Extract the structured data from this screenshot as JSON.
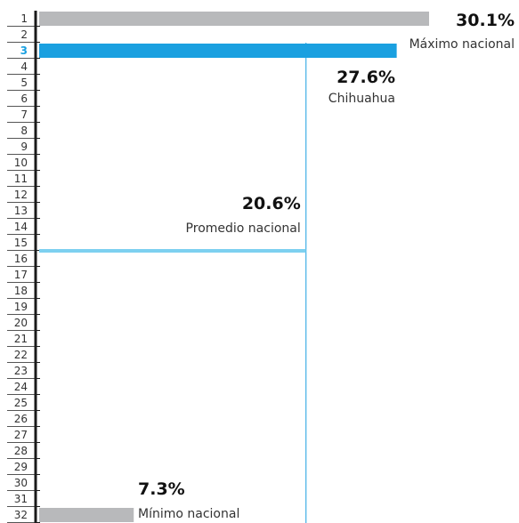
{
  "chart_data": {
    "type": "bar",
    "orientation": "horizontal",
    "categories": [
      "1",
      "2",
      "3",
      "4",
      "5",
      "6",
      "7",
      "8",
      "9",
      "10",
      "11",
      "12",
      "13",
      "14",
      "15",
      "16",
      "17",
      "18",
      "19",
      "20",
      "21",
      "22",
      "23",
      "24",
      "25",
      "26",
      "27",
      "28",
      "29",
      "30",
      "31",
      "32"
    ],
    "xlim": [
      0,
      30.1
    ],
    "bars": [
      {
        "rank": "1",
        "value": 30.1,
        "value_label": "30.1%",
        "description": "Máximo nacional",
        "color": "#b8b9bb"
      },
      {
        "rank": "3",
        "value": 27.6,
        "value_label": "27.6%",
        "description": "Chihuahua",
        "color": "#1aa0e0"
      },
      {
        "rank": "32",
        "value": 7.3,
        "value_label": "7.3%",
        "description": "Mínimo nacional",
        "color": "#b8b9bb"
      }
    ],
    "average": {
      "rank": "16",
      "value": 20.6,
      "value_label": "20.6%",
      "description": "Promedio nacional",
      "color": "#7dd0f0"
    },
    "highlight_rank": "3",
    "highlight_color": "#1aa0e0",
    "grid": false
  }
}
